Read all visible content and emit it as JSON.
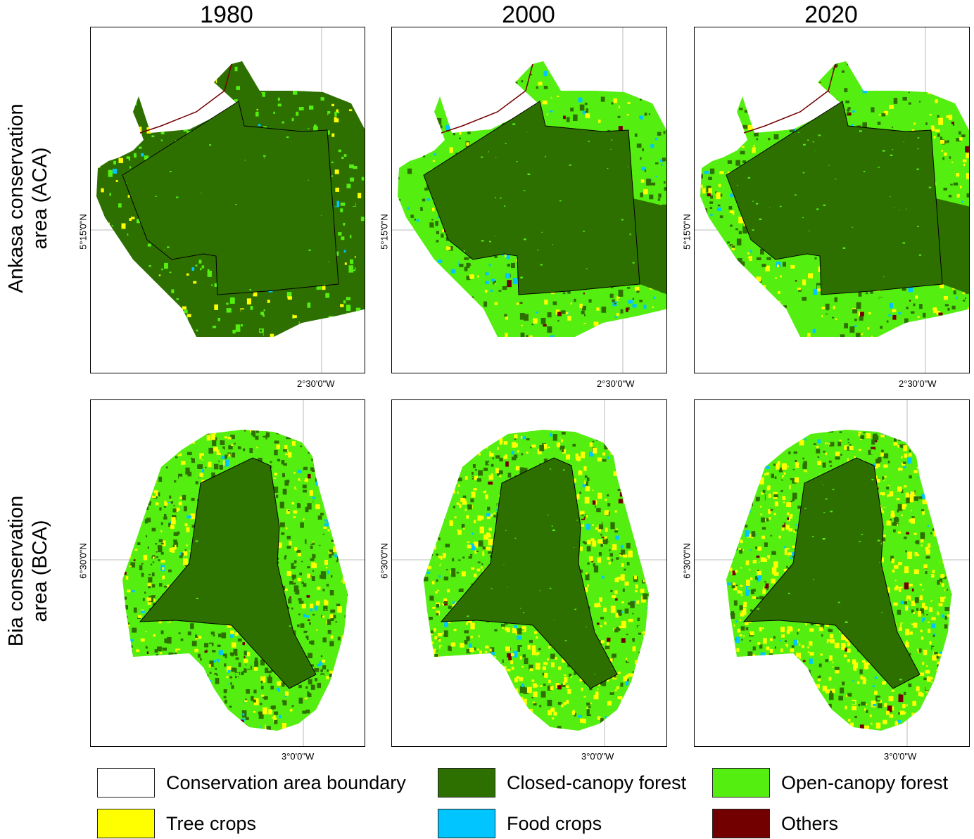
{
  "columns": [
    {
      "year": "1980"
    },
    {
      "year": "2000"
    },
    {
      "year": "2020"
    }
  ],
  "rows": [
    {
      "label_line1": "Ankasa conservation",
      "label_line2": "area (ACA)",
      "lat_label": "5°15'0\"N",
      "lon_label": "2°30'0\"W"
    },
    {
      "label_line1": "Bia conservation",
      "label_line2": "area (BCA)",
      "lat_label": "6°30'0\"N",
      "lon_label": "3°0'0\"W"
    }
  ],
  "legend": [
    {
      "label": "Conservation area boundary",
      "color": "#ffffff"
    },
    {
      "label": "Closed-canopy forest",
      "color": "#2e7000"
    },
    {
      "label": "Open-canopy forest",
      "color": "#55ee11"
    },
    {
      "label": "Tree crops",
      "color": "#ffff00"
    },
    {
      "label": "Food crops",
      "color": "#00c5ff"
    },
    {
      "label": "Others",
      "color": "#730000"
    }
  ]
}
